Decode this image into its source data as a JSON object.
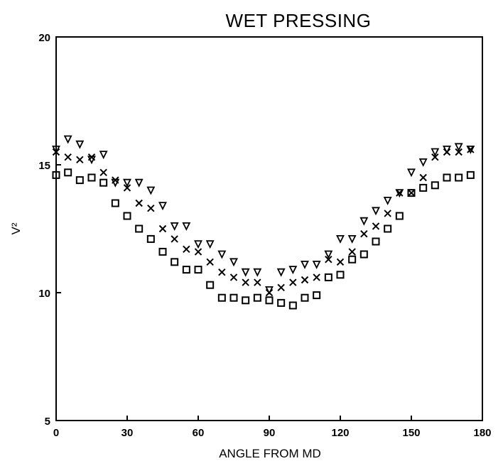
{
  "chart_data": {
    "type": "scatter",
    "title": "WET PRESSING",
    "xlabel": "ANGLE FROM MD",
    "ylabel": "V²",
    "xlim": [
      0,
      180
    ],
    "ylim": [
      5,
      20
    ],
    "xticks": [
      "0",
      "30",
      "60",
      "90",
      "120",
      "150",
      "180"
    ],
    "yticks": [
      "5",
      "10",
      "15",
      "20"
    ],
    "grid": false,
    "legend": "none",
    "series": [
      {
        "marker": "triangle-down",
        "x": [
          0,
          5,
          10,
          15,
          20,
          25,
          30,
          35,
          40,
          45,
          50,
          55,
          60,
          65,
          70,
          75,
          80,
          85,
          90,
          95,
          100,
          105,
          110,
          115,
          120,
          125,
          130,
          135,
          140,
          145,
          150,
          155,
          160,
          165,
          170,
          175
        ],
        "y": [
          15.6,
          16.0,
          15.8,
          15.2,
          15.4,
          14.3,
          14.3,
          14.3,
          14.0,
          13.4,
          12.6,
          12.6,
          11.9,
          11.9,
          11.5,
          11.2,
          10.8,
          10.8,
          10.1,
          10.8,
          10.9,
          11.1,
          11.1,
          11.5,
          12.1,
          12.1,
          12.8,
          13.2,
          13.6,
          13.9,
          14.7,
          15.1,
          15.5,
          15.6,
          15.7,
          15.6
        ]
      },
      {
        "marker": "x",
        "x": [
          0,
          5,
          10,
          15,
          20,
          25,
          30,
          35,
          40,
          45,
          50,
          55,
          60,
          65,
          70,
          75,
          80,
          85,
          90,
          95,
          100,
          105,
          110,
          115,
          120,
          125,
          130,
          135,
          140,
          145,
          150,
          155,
          160,
          165,
          170,
          175
        ],
        "y": [
          15.5,
          15.3,
          15.2,
          15.3,
          14.7,
          14.4,
          14.1,
          13.5,
          13.3,
          12.5,
          12.1,
          11.7,
          11.6,
          11.2,
          10.8,
          10.6,
          10.4,
          10.4,
          10.0,
          10.2,
          10.4,
          10.5,
          10.6,
          11.3,
          11.2,
          11.6,
          12.3,
          12.6,
          13.1,
          13.9,
          13.9,
          14.5,
          15.3,
          15.5,
          15.5,
          15.6
        ]
      },
      {
        "marker": "square",
        "x": [
          0,
          5,
          10,
          15,
          20,
          25,
          30,
          35,
          40,
          45,
          50,
          55,
          60,
          65,
          70,
          75,
          80,
          85,
          90,
          95,
          100,
          105,
          110,
          115,
          120,
          125,
          130,
          135,
          140,
          145,
          150,
          155,
          160,
          165,
          170,
          175
        ],
        "y": [
          14.6,
          14.7,
          14.4,
          14.5,
          14.3,
          13.5,
          13.0,
          12.5,
          12.1,
          11.6,
          11.2,
          10.9,
          10.9,
          10.3,
          9.8,
          9.8,
          9.7,
          9.8,
          9.7,
          9.6,
          9.5,
          9.8,
          9.9,
          10.6,
          10.7,
          11.3,
          11.5,
          12.0,
          12.5,
          13.0,
          13.9,
          14.1,
          14.2,
          14.5,
          14.5,
          14.6
        ]
      }
    ]
  }
}
